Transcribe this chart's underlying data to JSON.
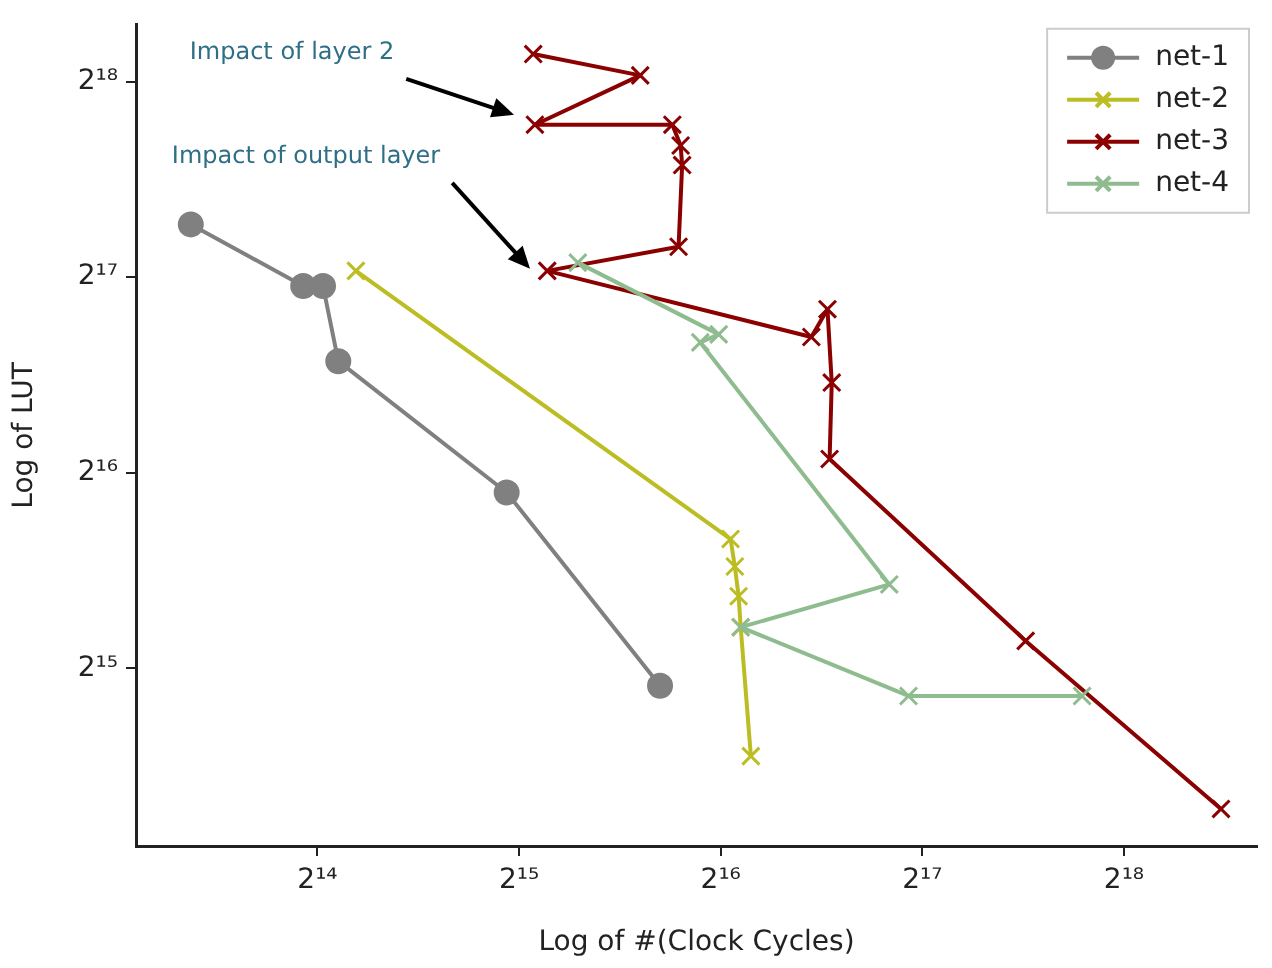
{
  "chart_data": {
    "type": "line",
    "xlabel": "Log of #(Clock Cycles)",
    "ylabel": "Log of LUT",
    "log": "xy",
    "grid": false,
    "legend": "top right",
    "xlim": [
      8780,
      414200
    ],
    "ylim": [
      17450,
      320600
    ],
    "xticks": [
      {
        "value": 16384,
        "label": "2¹⁴"
      },
      {
        "value": 32768,
        "label": "2¹⁵"
      },
      {
        "value": 65536,
        "label": "2¹⁶"
      },
      {
        "value": 131072,
        "label": "2¹⁷"
      },
      {
        "value": 262144,
        "label": "2¹⁸"
      }
    ],
    "yticks": [
      {
        "value": 32768,
        "label": "2¹⁵"
      },
      {
        "value": 65536,
        "label": "2¹⁶"
      },
      {
        "value": 131072,
        "label": "2¹⁷"
      },
      {
        "value": 262144,
        "label": "2¹⁸"
      }
    ],
    "annotations": [
      "Impact of layer 2",
      "Impact of output layer"
    ],
    "series": [
      {
        "name": "net-1",
        "color": "#808080",
        "marker": "circle",
        "x": [
          10600,
          15600,
          16700,
          17600,
          31400,
          53200
        ],
        "values": [
          158000,
          127000,
          127000,
          97300,
          61100,
          30800
        ]
      },
      {
        "name": "net-2",
        "color": "#bcbd22",
        "marker": "cross",
        "x": [
          18700,
          67800,
          68800,
          69700,
          70200,
          72700
        ],
        "values": [
          134000,
          51800,
          47000,
          42300,
          37900,
          24000
        ]
      },
      {
        "name": "net-3",
        "color": "#8b0000",
        "marker": "cross",
        "x": [
          34400,
          49700,
          34600,
          55500,
          57100,
          57400,
          56700,
          36100,
          89500,
          94600,
          96000,
          95300,
          187000,
          366000
        ],
        "values": [
          289000,
          268000,
          225000,
          225000,
          209000,
          195000,
          146000,
          134000,
          106000,
          117000,
          90200,
          68800,
          36100,
          19900
        ]
      },
      {
        "name": "net-4",
        "color": "#8fbc8f",
        "marker": "cross",
        "x": [
          40100,
          65100,
          61100,
          117000,
          70200,
          125000,
          227000
        ],
        "values": [
          138000,
          107000,
          104000,
          44100,
          37900,
          29700,
          29700
        ]
      }
    ]
  }
}
